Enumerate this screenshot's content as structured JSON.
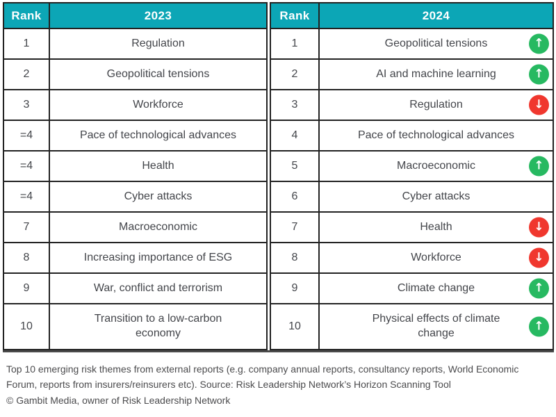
{
  "chart_data": {
    "type": "table",
    "columns": {
      "left": {
        "rank": "Rank",
        "year": "2023"
      },
      "right": {
        "rank": "Rank",
        "year": "2024"
      }
    },
    "rows": [
      {
        "rank_2023": "1",
        "theme_2023": "Regulation",
        "rank_2024": "1",
        "theme_2024": "Geopolitical tensions",
        "change_2024": "up"
      },
      {
        "rank_2023": "2",
        "theme_2023": "Geopolitical tensions",
        "rank_2024": "2",
        "theme_2024": "AI and machine learning",
        "change_2024": "up"
      },
      {
        "rank_2023": "3",
        "theme_2023": "Workforce",
        "rank_2024": "3",
        "theme_2024": "Regulation",
        "change_2024": "down"
      },
      {
        "rank_2023": "=4",
        "theme_2023": "Pace of technological advances",
        "rank_2024": "4",
        "theme_2024": "Pace of technological advances",
        "change_2024": "none"
      },
      {
        "rank_2023": "=4",
        "theme_2023": "Health",
        "rank_2024": "5",
        "theme_2024": "Macroeconomic",
        "change_2024": "up"
      },
      {
        "rank_2023": "=4",
        "theme_2023": "Cyber attacks",
        "rank_2024": "6",
        "theme_2024": "Cyber attacks",
        "change_2024": "none"
      },
      {
        "rank_2023": "7",
        "theme_2023": "Macroeconomic",
        "rank_2024": "7",
        "theme_2024": "Health",
        "change_2024": "down"
      },
      {
        "rank_2023": "8",
        "theme_2023": "Increasing importance of ESG",
        "rank_2024": "8",
        "theme_2024": "Workforce",
        "change_2024": "down"
      },
      {
        "rank_2023": "9",
        "theme_2023": "War, conflict and terrorism",
        "rank_2024": "9",
        "theme_2024": "Climate change",
        "change_2024": "up"
      },
      {
        "rank_2023": "10",
        "theme_2023": "Transition to a low-carbon economy",
        "rank_2024": "10",
        "theme_2024": "Physical effects of climate change",
        "change_2024": "up"
      }
    ]
  },
  "icons": {
    "up_arrow": "↑",
    "down_arrow": "↓"
  },
  "colors": {
    "teal": "#0ca6b6",
    "green": "#27b961",
    "red": "#f0372e",
    "border": "#222222",
    "cell-text": "#43454a",
    "footer-text": "#4b4b4d",
    "header-text": "#ffffff",
    "bg": "#ffffff"
  },
  "footer": {
    "description": "Top 10 emerging risk themes from external reports (e.g. company annual reports, consultancy reports, World Economic Forum, reports from insurers/reinsurers etc). Source: Risk Leadership Network’s Horizon Scanning Tool",
    "copyright": "© Gambit Media, owner of Risk Leadership Network"
  }
}
